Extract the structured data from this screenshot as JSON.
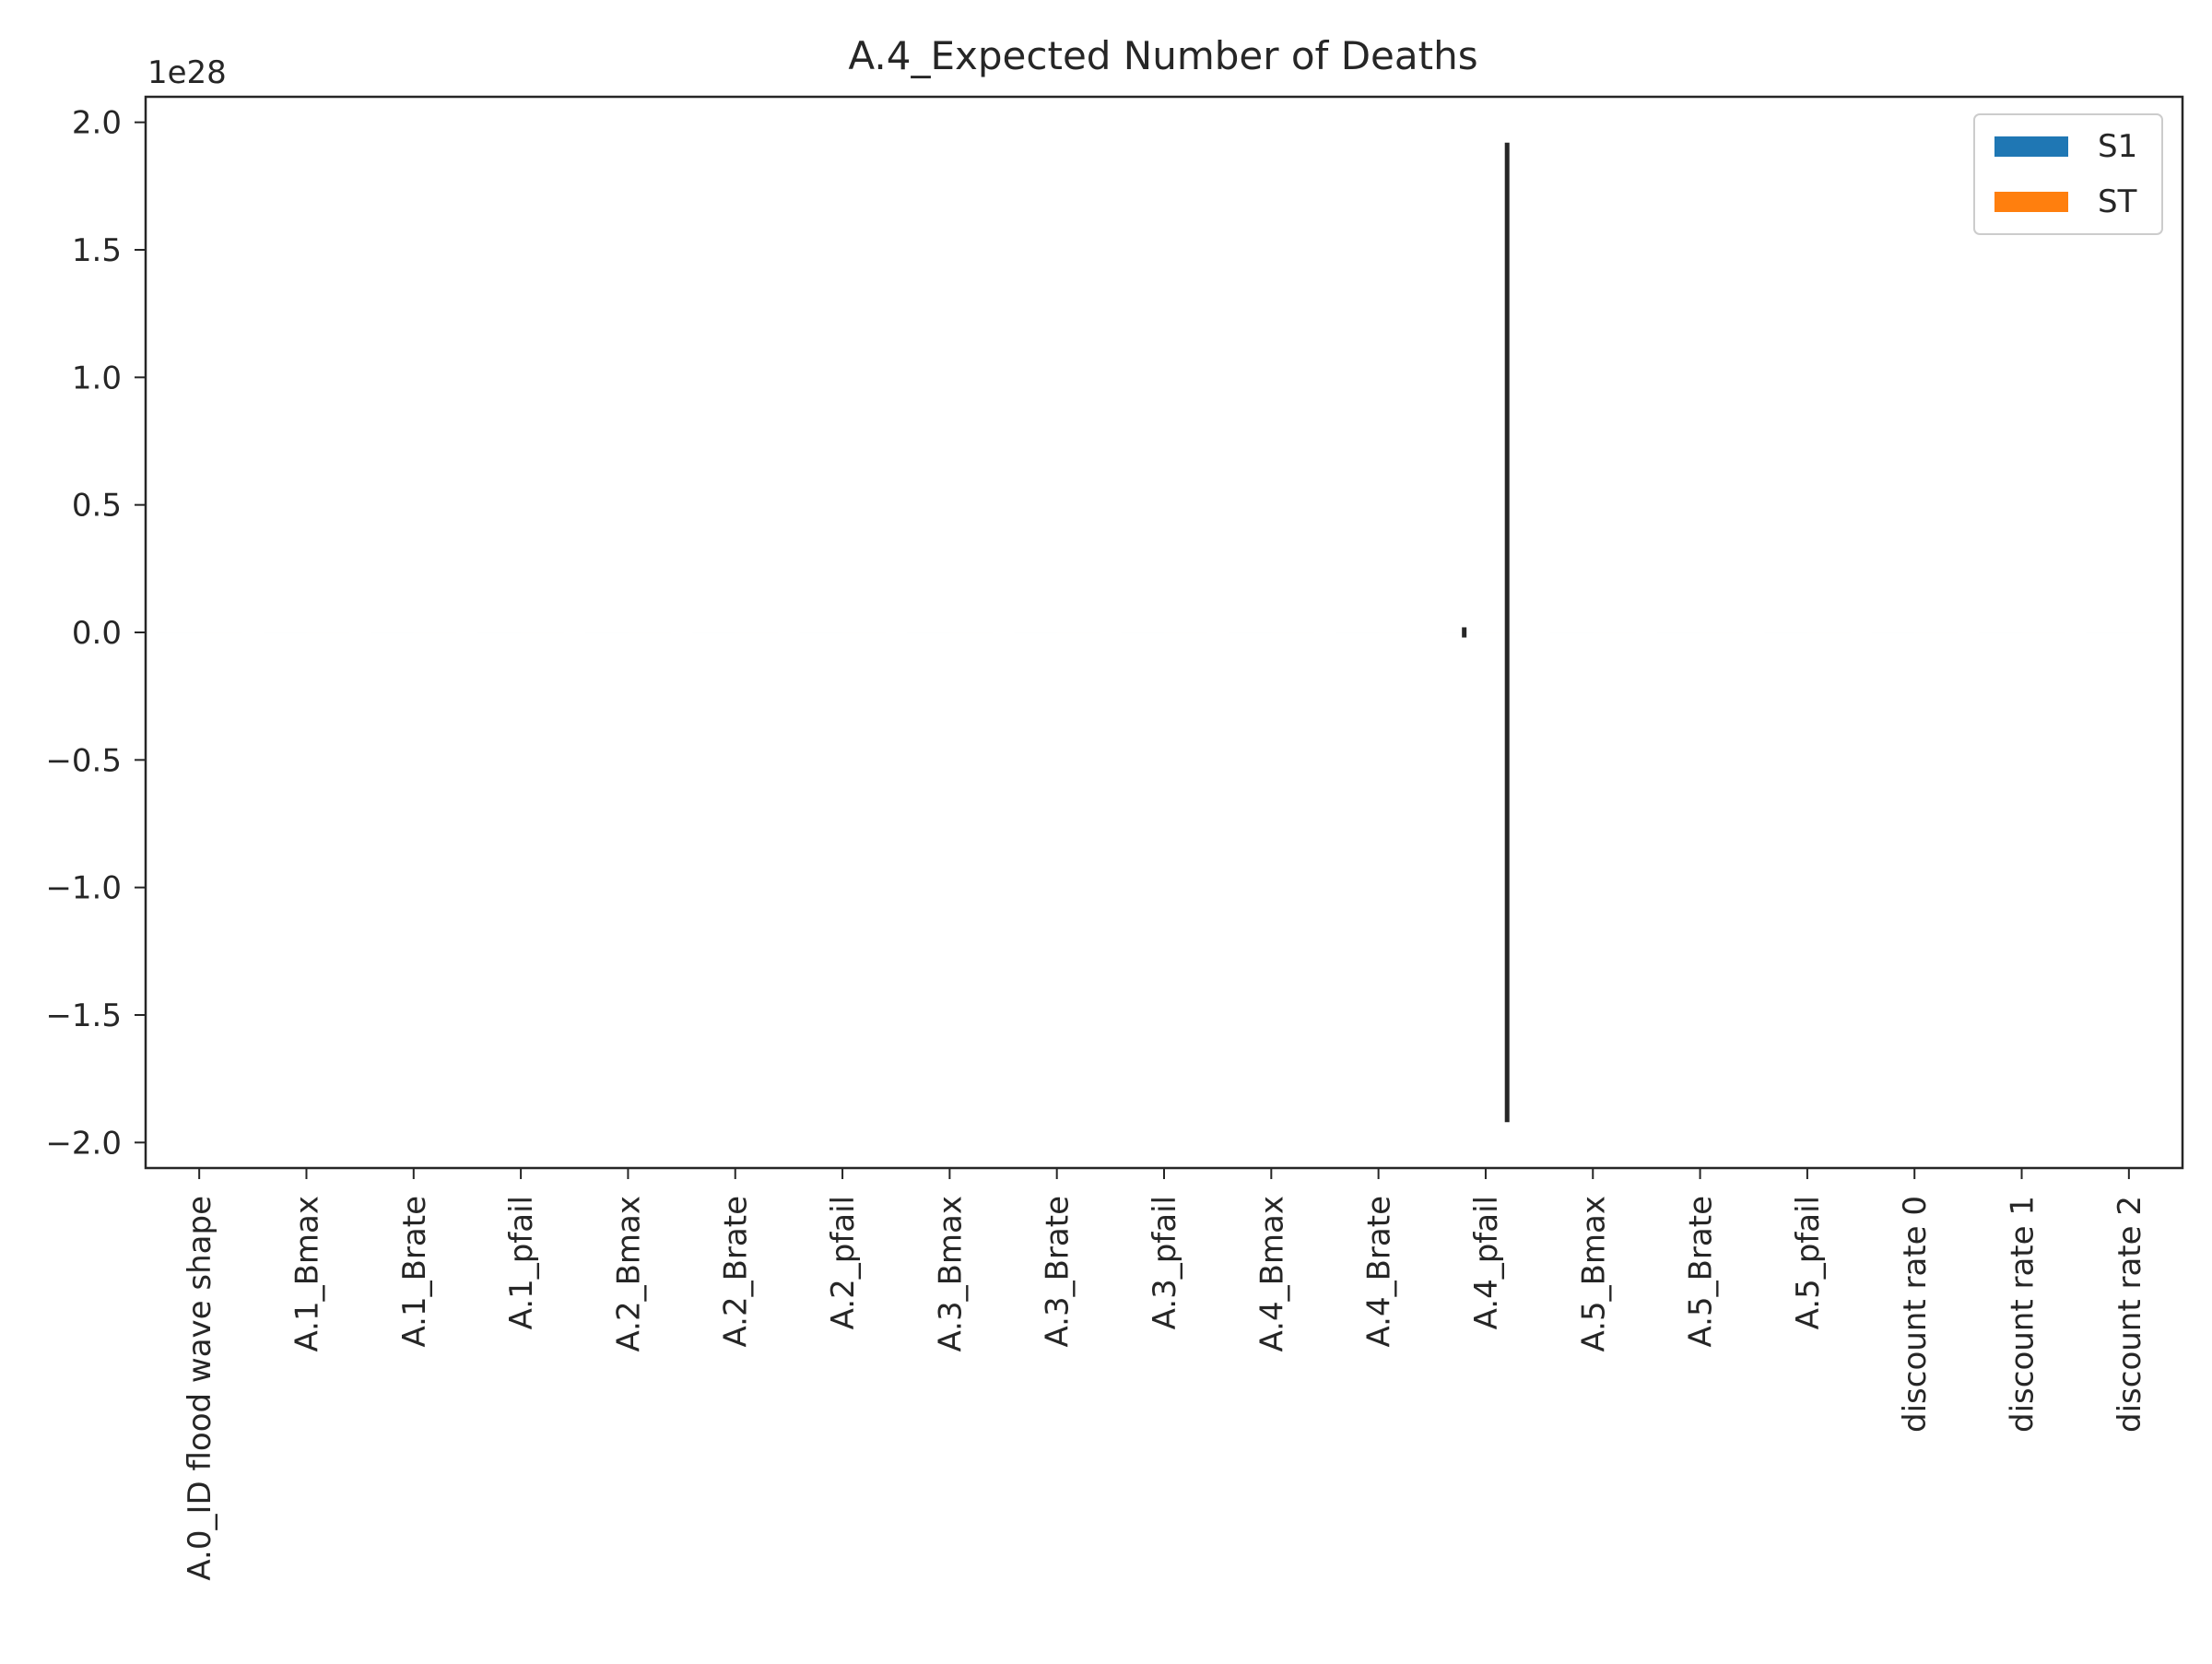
{
  "chart_data": {
    "type": "bar",
    "title": "A.4_Expected Number of Deaths",
    "xlabel": "",
    "ylabel": "",
    "y_offset_label": "1e28",
    "ylim": [
      -2.1,
      2.1
    ],
    "y_ticks": [
      -2.0,
      -1.5,
      -1.0,
      -0.5,
      0.0,
      0.5,
      1.0,
      1.5,
      2.0
    ],
    "y_tick_labels": [
      "−2.0",
      "−1.5",
      "−1.0",
      "−0.5",
      "0.0",
      "0.5",
      "1.0",
      "1.5",
      "2.0"
    ],
    "grid": false,
    "legend_position": "top-right",
    "categories": [
      "A.0_ID flood wave shape",
      "A.1_Bmax",
      "A.1_Brate",
      "A.1_pfail",
      "A.2_Bmax",
      "A.2_Brate",
      "A.2_pfail",
      "A.3_Bmax",
      "A.3_Brate",
      "A.3_pfail",
      "A.4_Bmax",
      "A.4_Brate",
      "A.4_pfail",
      "A.5_Bmax",
      "A.5_Brate",
      "A.5_pfail",
      "discount rate 0",
      "discount rate 1",
      "discount rate 2"
    ],
    "series": [
      {
        "name": "S1",
        "color": "#1f77b4",
        "values": [
          0,
          0,
          0,
          0,
          0,
          0,
          0,
          0,
          0,
          0,
          0,
          0,
          0,
          0,
          0,
          0,
          0,
          0,
          0
        ],
        "errors": [
          0,
          0,
          0,
          0,
          0,
          0,
          0,
          0,
          0,
          0,
          0,
          0,
          0.02,
          0,
          0,
          0,
          0,
          0,
          0
        ]
      },
      {
        "name": "ST",
        "color": "#ff7f0e",
        "values": [
          0,
          0,
          0,
          0,
          0,
          0,
          0,
          0,
          0,
          0,
          0,
          0,
          0,
          0,
          0,
          0,
          0,
          0,
          0
        ],
        "errors": [
          0,
          0,
          0,
          0,
          0,
          0,
          0,
          0,
          0,
          0,
          0,
          0,
          1.92,
          0,
          0,
          0,
          0,
          0,
          0
        ]
      }
    ]
  }
}
